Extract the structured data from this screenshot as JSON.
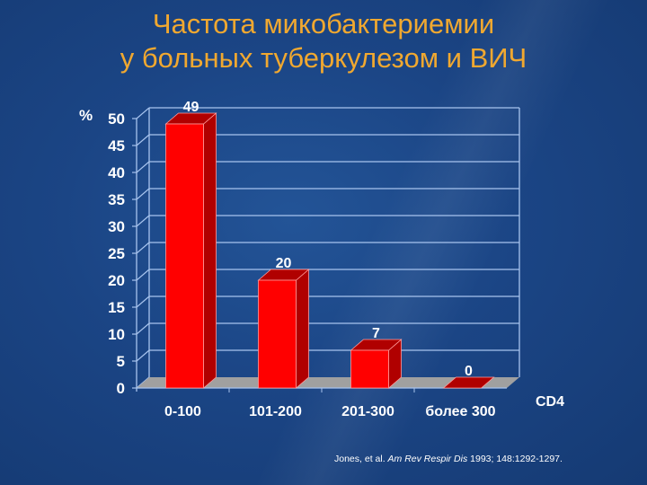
{
  "slide": {
    "title_line1": "Частота микобактериемии",
    "title_line2": "у больных туберкулезом и ВИЧ",
    "citation": {
      "authors": "Jones, et al. ",
      "journal": "Am Rev Respir Dis",
      "details": " 1993; 148:1292-1297."
    }
  },
  "chart_data": {
    "type": "bar",
    "title": "Частота микобактериемии у больных туберкулезом и ВИЧ",
    "xlabel": "CD4",
    "ylabel": "%",
    "categories": [
      "0-100",
      "101-200",
      "201-300",
      "более 300"
    ],
    "values": [
      49,
      20,
      7,
      0
    ],
    "data_labels": [
      "49",
      "20",
      "7",
      "0"
    ],
    "ylim": [
      0,
      50
    ],
    "yticks": [
      0,
      5,
      10,
      15,
      20,
      25,
      30,
      35,
      40,
      45,
      50
    ],
    "grid": true,
    "style": "3d",
    "bar_color": "#ff0000",
    "bar_side_color": "#b00000",
    "floor_color": "#a0a0a0",
    "legend": null
  }
}
